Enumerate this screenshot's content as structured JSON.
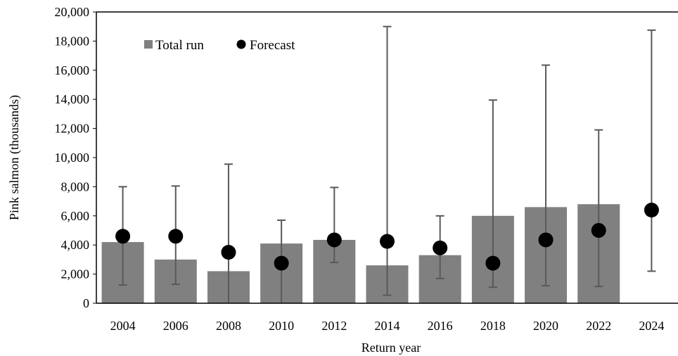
{
  "chart_data": {
    "type": "bar",
    "title": "",
    "xlabel": "Return year",
    "ylabel": "Pink salmon (thousands)",
    "ylim": [
      0,
      20000
    ],
    "yticks": [
      0,
      2000,
      4000,
      6000,
      8000,
      10000,
      12000,
      14000,
      16000,
      18000,
      20000
    ],
    "ytick_labels": [
      "0",
      "2,000",
      "4,000",
      "6,000",
      "8,000",
      "10,000",
      "12,000",
      "14,000",
      "16,000",
      "18,000",
      "20,000"
    ],
    "categories": [
      "2004",
      "2006",
      "2008",
      "2010",
      "2012",
      "2014",
      "2016",
      "2018",
      "2020",
      "2022",
      "2024"
    ],
    "grid": false,
    "legend_position": "top-left",
    "series": [
      {
        "name": "Total run",
        "kind": "bar",
        "color": "#808080",
        "values": [
          4200,
          3000,
          2200,
          4100,
          4350,
          2600,
          3300,
          6000,
          6600,
          6800,
          null
        ]
      },
      {
        "name": "Forecast",
        "kind": "scatter",
        "color": "#000000",
        "values": [
          4600,
          4600,
          3500,
          2750,
          4350,
          4250,
          3800,
          2750,
          4350,
          5000,
          6400
        ],
        "error_low": [
          1250,
          1300,
          0,
          0,
          2800,
          550,
          1700,
          1100,
          1200,
          1150,
          2200
        ],
        "error_high": [
          8000,
          8050,
          9550,
          5700,
          7950,
          19000,
          6000,
          13950,
          16350,
          11900,
          18750
        ]
      }
    ]
  }
}
